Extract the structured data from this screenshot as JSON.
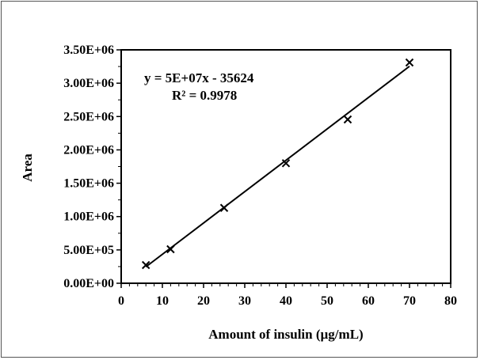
{
  "chart_data": {
    "type": "scatter",
    "title": "",
    "xlabel": "Amount of insulin (µg/mL)",
    "ylabel": "Area",
    "xlim": [
      0,
      80
    ],
    "ylim": [
      0,
      3500000
    ],
    "x_ticks": [
      "0",
      "10",
      "20",
      "30",
      "40",
      "50",
      "60",
      "70",
      "80"
    ],
    "y_ticks": [
      "0.00E+00",
      "5.00E+05",
      "1.00E+06",
      "1.50E+06",
      "2.00E+06",
      "2.50E+06",
      "3.00E+06",
      "3.50E+06"
    ],
    "grid": false,
    "marker": "x",
    "series": [
      {
        "x": [
          6,
          12,
          25,
          40,
          55,
          70
        ],
        "y": [
          273000,
          510000,
          1130000,
          1800000,
          2456000,
          3310000
        ]
      }
    ],
    "trendline": {
      "type": "linear",
      "x": [
        6,
        70
      ],
      "y": [
        246000,
        3254000
      ]
    },
    "annotations": {
      "equation": "y = 5E+07x - 35624",
      "r_squared": "R² = 0.9978"
    },
    "colors": {
      "marks": "#000000",
      "background": "#ffffff"
    }
  }
}
